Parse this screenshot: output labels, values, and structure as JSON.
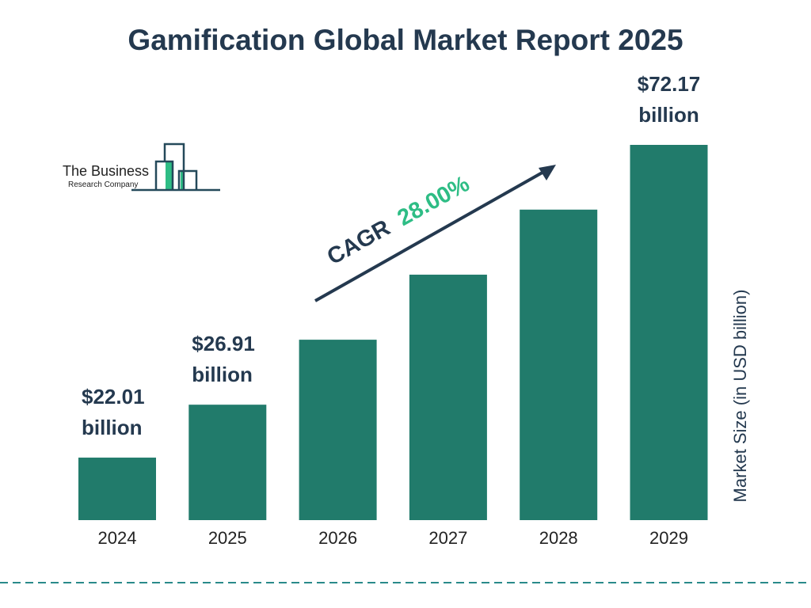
{
  "chart_data": {
    "type": "bar",
    "title": "Gamification Global Market Report 2025",
    "categories": [
      "2024",
      "2025",
      "2026",
      "2027",
      "2028",
      "2029"
    ],
    "values": [
      22.01,
      26.91,
      34.44,
      44.09,
      56.44,
      72.17
    ],
    "data_labels": [
      "$22.01 billion",
      "$26.91 billion",
      "",
      "",
      "",
      "$72.17 billion"
    ],
    "data_label_parts": [
      [
        "$22.01",
        "billion"
      ],
      [
        "$26.91",
        "billion"
      ],
      null,
      null,
      null,
      [
        "$72.17",
        "billion"
      ]
    ],
    "ylabel": "Market Size (in USD billion)",
    "yscale": "log",
    "ylim": [
      17.36,
      72.17
    ],
    "grid": false,
    "annotation": {
      "prefix": "CAGR",
      "value": "28.00%"
    },
    "colors": {
      "bar": "#217b6b",
      "title": "#24394f",
      "cagr": "#2ebd85",
      "dash": "#2a8a8a"
    }
  },
  "logo": {
    "line1": "The Business",
    "line2": "Research Company"
  }
}
